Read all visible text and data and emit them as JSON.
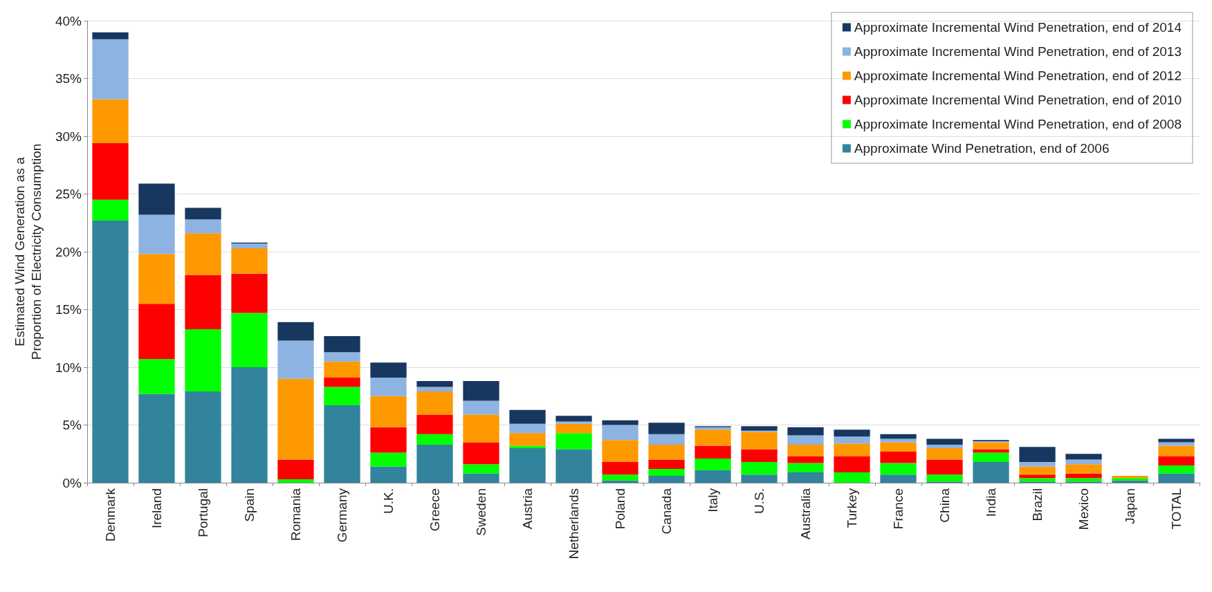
{
  "chart_data": {
    "type": "bar",
    "stacked": true,
    "ylabel": "Estimated Wind Generation as a\nProportion of Electricity Consumption",
    "categories": [
      "Denmark",
      "Ireland",
      "Portugal",
      "Spain",
      "Romania",
      "Germany",
      "U.K.",
      "Greece",
      "Sweden",
      "Austria",
      "Netherlands",
      "Poland",
      "Canada",
      "Italy",
      "U.S.",
      "Australia",
      "Turkey",
      "France",
      "China",
      "India",
      "Brazil",
      "Mexico",
      "Japan",
      "TOTAL"
    ],
    "series": [
      {
        "name": "Approximate Wind Penetration, end of 2006",
        "color": "#31849b",
        "values": [
          22.7,
          7.7,
          7.9,
          10.0,
          0,
          6.7,
          1.4,
          3.3,
          0.8,
          3.0,
          2.9,
          0.2,
          0.6,
          1.1,
          0.7,
          0.9,
          0,
          0.7,
          0.1,
          1.8,
          0.1,
          0.1,
          0.2,
          0.8
        ]
      },
      {
        "name": "Approximate Incremental Wind Penetration, end of 2008",
        "color": "#00ff00",
        "values": [
          1.8,
          3.0,
          5.4,
          4.7,
          0.3,
          1.6,
          1.2,
          0.9,
          0.8,
          0.2,
          1.4,
          0.5,
          0.6,
          1.0,
          1.1,
          0.8,
          0.9,
          1.0,
          0.6,
          0.8,
          0.3,
          0.3,
          0.2,
          0.7
        ]
      },
      {
        "name": "Approximate Incremental Wind Penetration, end of 2010",
        "color": "#ff0000",
        "values": [
          4.9,
          4.8,
          4.7,
          3.4,
          1.7,
          0.8,
          2.2,
          1.7,
          1.9,
          0,
          0,
          1.1,
          0.8,
          1.1,
          1.1,
          0.6,
          1.4,
          1.0,
          1.3,
          0.3,
          0.3,
          0.4,
          0,
          0.8
        ]
      },
      {
        "name": "Approximate Incremental Wind Penetration, end of 2012",
        "color": "#ff9900",
        "values": [
          3.8,
          4.3,
          3.6,
          2.2,
          7.0,
          1.4,
          2.7,
          2.0,
          2.4,
          1.1,
          0.8,
          1.9,
          1.3,
          1.4,
          1.5,
          1.0,
          1.1,
          0.8,
          1.0,
          0.6,
          0.7,
          0.8,
          0.2,
          0.9
        ]
      },
      {
        "name": "Approximate Incremental Wind Penetration, end of 2013",
        "color": "#8db3e2",
        "values": [
          5.2,
          3.4,
          1.2,
          0.4,
          3.3,
          0.8,
          1.6,
          0.4,
          1.2,
          0.8,
          0.2,
          1.3,
          0.9,
          0.2,
          0.1,
          0.8,
          0.6,
          0.3,
          0.3,
          0.1,
          0.4,
          0.4,
          0,
          0.3
        ]
      },
      {
        "name": "Approximate Incremental Wind Penetration, end of 2014",
        "color": "#17375e",
        "values": [
          0.6,
          2.7,
          1.0,
          0.1,
          1.6,
          1.4,
          1.3,
          0.5,
          1.7,
          1.2,
          0.5,
          0.4,
          1.0,
          0.1,
          0.4,
          0.7,
          0.6,
          0.4,
          0.5,
          0.1,
          1.3,
          0.5,
          0,
          0.3
        ]
      }
    ],
    "ylim": [
      0,
      40
    ],
    "yticks": [
      {
        "value": 0,
        "label": "0%"
      },
      {
        "value": 5,
        "label": "5%"
      },
      {
        "value": 10,
        "label": "10%"
      },
      {
        "value": 15,
        "label": "15%"
      },
      {
        "value": 20,
        "label": "20%"
      },
      {
        "value": 25,
        "label": "25%"
      },
      {
        "value": 30,
        "label": "30%"
      },
      {
        "value": 35,
        "label": "35%"
      },
      {
        "value": 40,
        "label": "40%"
      }
    ],
    "grid": "y",
    "legend": "top right"
  }
}
